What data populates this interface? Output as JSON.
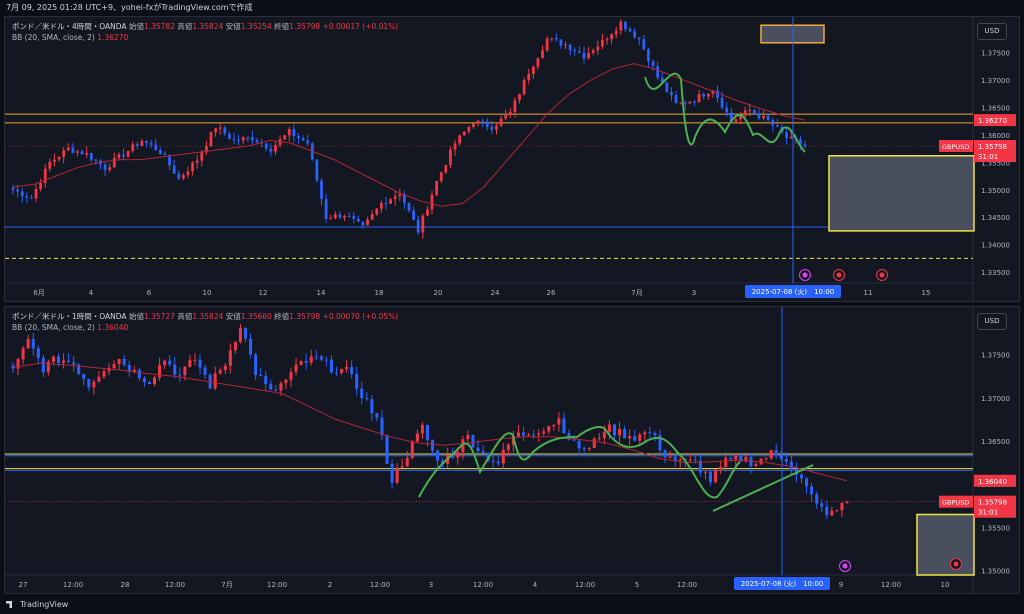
{
  "header": {
    "text": "7月 09, 2025 01:28 UTC+9、yohei-fxがTradingView.comで作成"
  },
  "footer": {
    "logo_text": "TradingView"
  },
  "panes": [
    {
      "symbol_line": "ポンド／米ドル・4時間・OANDA",
      "ohlc": [
        {
          "label": "始値",
          "value": "1.35782"
        },
        {
          "label": "高値",
          "value": "1.35824"
        },
        {
          "label": "安値",
          "value": "1.35254"
        },
        {
          "label": "終値",
          "value": "1.35798"
        },
        {
          "label": "",
          "value": "+0.00017 (+0.01%)"
        }
      ],
      "indicator": {
        "name": "BB (20, SMA, close, 2)",
        "value": "1.36270"
      },
      "currency": "USD",
      "price_labels": [
        "1.37500",
        "1.37000",
        "1.36500",
        "1.36000",
        "1.35500",
        "1.35000",
        "1.34500",
        "1.34000",
        "1.33500"
      ],
      "tag_orange": "1.36270",
      "tag_symbol": "GBPUSD",
      "tag_price": "1.35798",
      "tag_countdown": "31:01",
      "time_labels": [
        "6月",
        "4",
        "6",
        "10",
        "12",
        "14",
        "18",
        "20",
        "24",
        "26",
        "7月",
        "3",
        "8",
        "11",
        "15"
      ],
      "cursor_label": "2025-07-08 (火)　10:00"
    },
    {
      "symbol_line": "ポンド／米ドル・1時間・OANDA",
      "ohlc": [
        {
          "label": "始値",
          "value": "1.35727"
        },
        {
          "label": "高値",
          "value": "1.35824"
        },
        {
          "label": "安値",
          "value": "1.35660"
        },
        {
          "label": "終値",
          "value": "1.35798"
        },
        {
          "label": "",
          "value": "+0.00070 (+0.05%)"
        }
      ],
      "indicator": {
        "name": "BB (20, SMA, close, 2)",
        "value": "1.36040"
      },
      "currency": "USD",
      "price_labels": [
        "1.37500",
        "1.37000",
        "1.36500",
        "1.36000",
        "1.35500",
        "1.35000"
      ],
      "tag_orange": "1.36040",
      "tag_symbol": "GBPUSD",
      "tag_price": "1.35798",
      "tag_countdown": "31:01",
      "time_labels": [
        "27",
        "12:00",
        "28",
        "12:00",
        "7月",
        "12:00",
        "2",
        "12:00",
        "3",
        "12:00",
        "4",
        "12:00",
        "5",
        "12:00",
        "9",
        "12:00",
        "10"
      ],
      "cursor_label": "2025-07-08 (火)　10:00"
    }
  ],
  "chart_data": [
    {
      "type": "candlestick",
      "title": "ポンド／米ドル・4時間・OANDA",
      "ylim": [
        1.333,
        1.3815
      ],
      "close_path": [
        1.35,
        1.3485,
        1.355,
        1.3575,
        1.3565,
        1.354,
        1.3565,
        1.359,
        1.357,
        1.352,
        1.3555,
        1.3615,
        1.359,
        1.3595,
        1.3575,
        1.3605,
        1.3585,
        1.345,
        1.3455,
        1.343,
        1.3475,
        1.3495,
        1.3425,
        1.3515,
        1.3585,
        1.3625,
        1.3615,
        1.364,
        1.3715,
        1.3775,
        1.3765,
        1.3745,
        1.377,
        1.3805,
        1.3775,
        1.3705,
        1.3655,
        1.3665,
        1.3685,
        1.3625,
        1.3645,
        1.3625,
        1.3595,
        1.35798
      ],
      "bb_middle": [
        1.3505,
        1.351,
        1.3525,
        1.354,
        1.355,
        1.3555,
        1.3555,
        1.356,
        1.3565,
        1.357,
        1.3575,
        1.358,
        1.359,
        1.3585,
        1.357,
        1.3555,
        1.3535,
        1.3515,
        1.3495,
        1.348,
        1.347,
        1.3475,
        1.3505,
        1.355,
        1.3595,
        1.364,
        1.3675,
        1.37,
        1.372,
        1.373,
        1.372,
        1.3705,
        1.369,
        1.3675,
        1.366,
        1.3647,
        1.3635,
        1.3627
      ],
      "horizontal_levels": [
        {
          "price": 1.3638,
          "color": "#f0a93a"
        },
        {
          "price": 1.3622,
          "color": "#f0a93a"
        },
        {
          "price": 1.3432,
          "color": "#2962ff"
        },
        {
          "price": 1.3375,
          "color": "#f0e440"
        }
      ],
      "last_price": 1.35798
    },
    {
      "type": "candlestick",
      "title": "ポンド／米ドル・1時間・OANDA",
      "ylim": [
        1.3495,
        1.3805
      ],
      "close_path": [
        1.373,
        1.3765,
        1.3735,
        1.3745,
        1.374,
        1.3715,
        1.3735,
        1.3745,
        1.373,
        1.372,
        1.3745,
        1.3725,
        1.3745,
        1.3715,
        1.374,
        1.3785,
        1.373,
        1.3705,
        1.372,
        1.374,
        1.3745,
        1.3735,
        1.373,
        1.3705,
        1.3675,
        1.3605,
        1.3635,
        1.3665,
        1.3625,
        1.3635,
        1.3655,
        1.3635,
        1.3625,
        1.3655,
        1.366,
        1.3665,
        1.3675,
        1.3645,
        1.364,
        1.3665,
        1.366,
        1.3655,
        1.366,
        1.3635,
        1.3625,
        1.3625,
        1.3605,
        1.3625,
        1.363,
        1.3625,
        1.3635,
        1.363,
        1.3605,
        1.3575,
        1.3565,
        1.35798
      ],
      "bb_middle": [
        1.3735,
        1.374,
        1.3738,
        1.3735,
        1.3732,
        1.3728,
        1.3725,
        1.372,
        1.3715,
        1.371,
        1.3705,
        1.369,
        1.3675,
        1.3665,
        1.3655,
        1.3648,
        1.3645,
        1.3648,
        1.3652,
        1.3655,
        1.3655,
        1.3652,
        1.3648,
        1.364,
        1.363,
        1.3625,
        1.3626,
        1.3628,
        1.3625,
        1.362,
        1.3612,
        1.3604
      ],
      "horizontal_levels": [
        {
          "price": 1.3635,
          "color": "#f0e440"
        },
        {
          "price": 1.3633,
          "color": "#2962ff"
        },
        {
          "price": 1.3618,
          "color": "#f0e440"
        },
        {
          "price": 1.3616,
          "color": "#2962ff"
        }
      ],
      "last_price": 1.35798
    }
  ]
}
